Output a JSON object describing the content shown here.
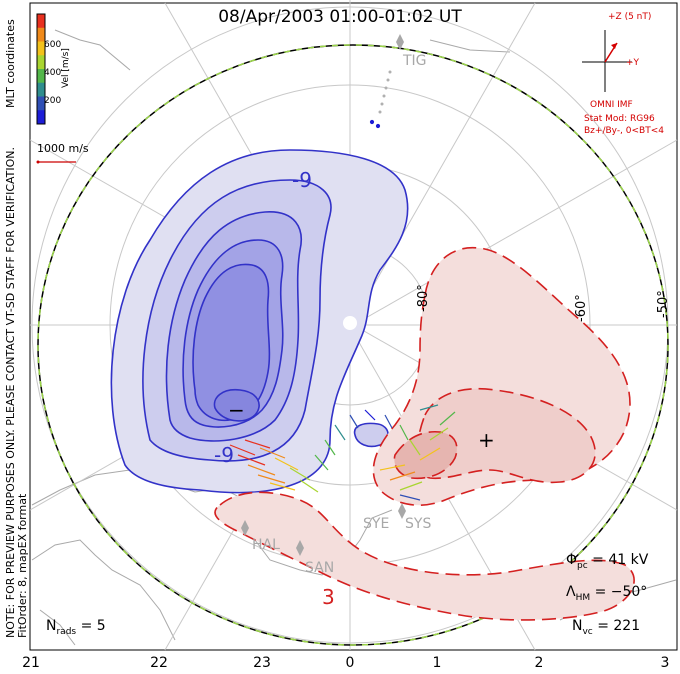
{
  "title": "08/Apr/2003 01:00-01:02 UT",
  "side_note": {
    "line1": "NOTE: FOR PREVIEW PURPOSES ONLY. PLEASE CONTACT VT-SD STAFF FOR VERIFICATION.",
    "line2": "FitOrder: 8, mapEX format"
  },
  "coord_label": "MLT coordinates",
  "colorbar": {
    "label": "Vel [m/s]",
    "ticks": [
      "600",
      "400",
      "200"
    ],
    "colors": [
      "#e8301f",
      "#f08a1a",
      "#f3c21b",
      "#a9d531",
      "#53b74a",
      "#2f8e8e",
      "#2f4fb5",
      "#1d1dd6"
    ]
  },
  "scale_vector": {
    "label": "1000 m/s",
    "color": "#cc0000"
  },
  "imf_box": {
    "z_label": "+Z (5 nT)",
    "y_label": "+Y",
    "name": "OMNI IMF",
    "model": "Stat Mod: RG96",
    "condition": "Bz+/By-, 0<BT<4"
  },
  "stations": {
    "tig": "TIG",
    "hal": "HAL",
    "san": "SAN",
    "sye": "SYE",
    "sys": "SYS"
  },
  "lat_labels": {
    "l80": "-80°",
    "l60": "-60°",
    "l50": "-50°"
  },
  "contour_labels": {
    "neg": "-9",
    "neg2": "-9",
    "pos": "3"
  },
  "extrema": {
    "min_symbol": "−",
    "max_symbol": "+"
  },
  "stats": {
    "phi_label": "Φ",
    "phi_sub": "pc",
    "phi_value": "= 41 kV",
    "lambda_label": "Λ",
    "lambda_sub": "HM",
    "lambda_value": "= −50°",
    "nvc_label": "N",
    "nvc_sub": "vc",
    "nvc_value": "= 221",
    "nrads_label": "N",
    "nrads_sub": "rads",
    "nrads_value": "= 5"
  },
  "mlt_ticks": [
    "21",
    "22",
    "23",
    "0",
    "1",
    "2",
    "3"
  ],
  "colors": {
    "negative_cell": "#3232c8",
    "positive_cell": "#d42020",
    "boundary": "#000000",
    "boundary_dash": "#9cd64a",
    "grid": "#c8c8c8",
    "coast": "#a9a9a9"
  }
}
